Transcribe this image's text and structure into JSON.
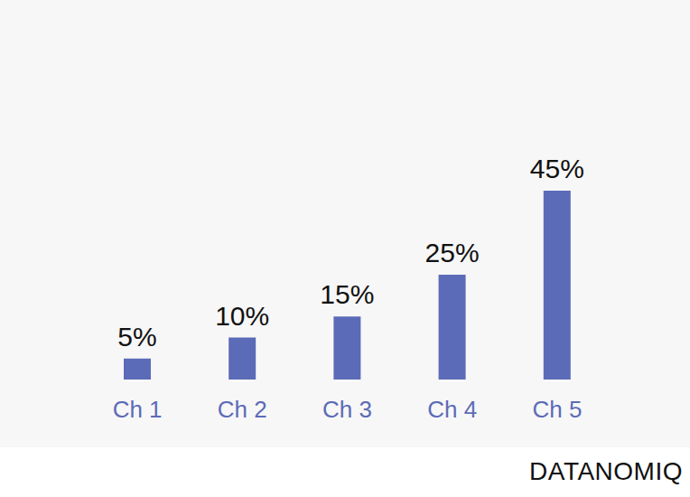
{
  "chart_data": {
    "type": "bar",
    "categories": [
      "Ch 1",
      "Ch 2",
      "Ch 3",
      "Ch 4",
      "Ch 5"
    ],
    "values": [
      5,
      10,
      15,
      25,
      45
    ],
    "value_labels": [
      "5%",
      "10%",
      "15%",
      "25%",
      "45%"
    ],
    "color": "#5c6bb8",
    "ylim": [
      0,
      45
    ],
    "grid": false,
    "data_labels": true,
    "tick_labels": "x",
    "annotations": [
      "DATANOMIQ"
    ]
  }
}
